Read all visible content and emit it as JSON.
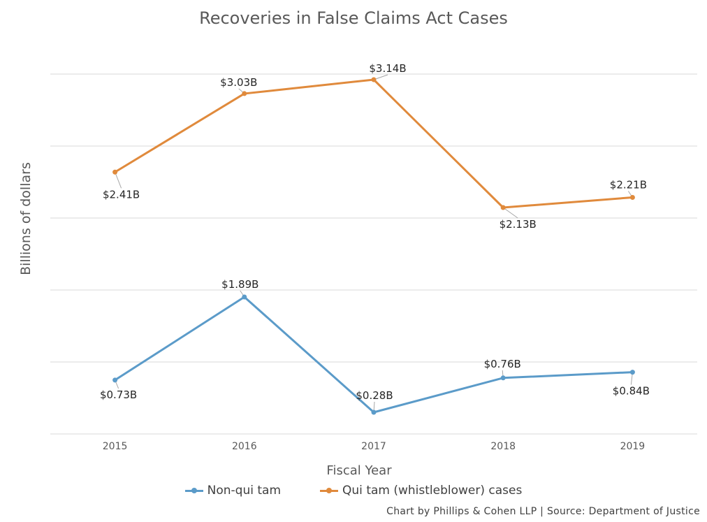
{
  "chart_data": {
    "type": "line",
    "title": "Recoveries in False Claims Act Cases",
    "xlabel": "Fiscal Year",
    "ylabel": "Billions of dollars",
    "categories": [
      "2015",
      "2016",
      "2017",
      "2018",
      "2019"
    ],
    "grid": true,
    "legend_position": "bottom",
    "series": [
      {
        "name": "Non-qui tam",
        "color": "#5b9bc9",
        "values": [
          0.73,
          1.89,
          0.28,
          0.76,
          0.84
        ],
        "labels": [
          "$0.73B",
          "$1.89B",
          "$0.28B",
          "$0.76B",
          "$0.84B"
        ]
      },
      {
        "name": "Qui tam (whistleblower) cases",
        "color": "#e08a3c",
        "values": [
          2.41,
          3.03,
          3.14,
          2.13,
          2.21
        ],
        "labels": [
          "$2.41B",
          "$3.03B",
          "$3.14B",
          "$2.13B",
          "$2.21B"
        ]
      }
    ]
  },
  "footer": {
    "credit": "Chart by Phillips & Cohen LLP | Source: Department of Justice"
  }
}
